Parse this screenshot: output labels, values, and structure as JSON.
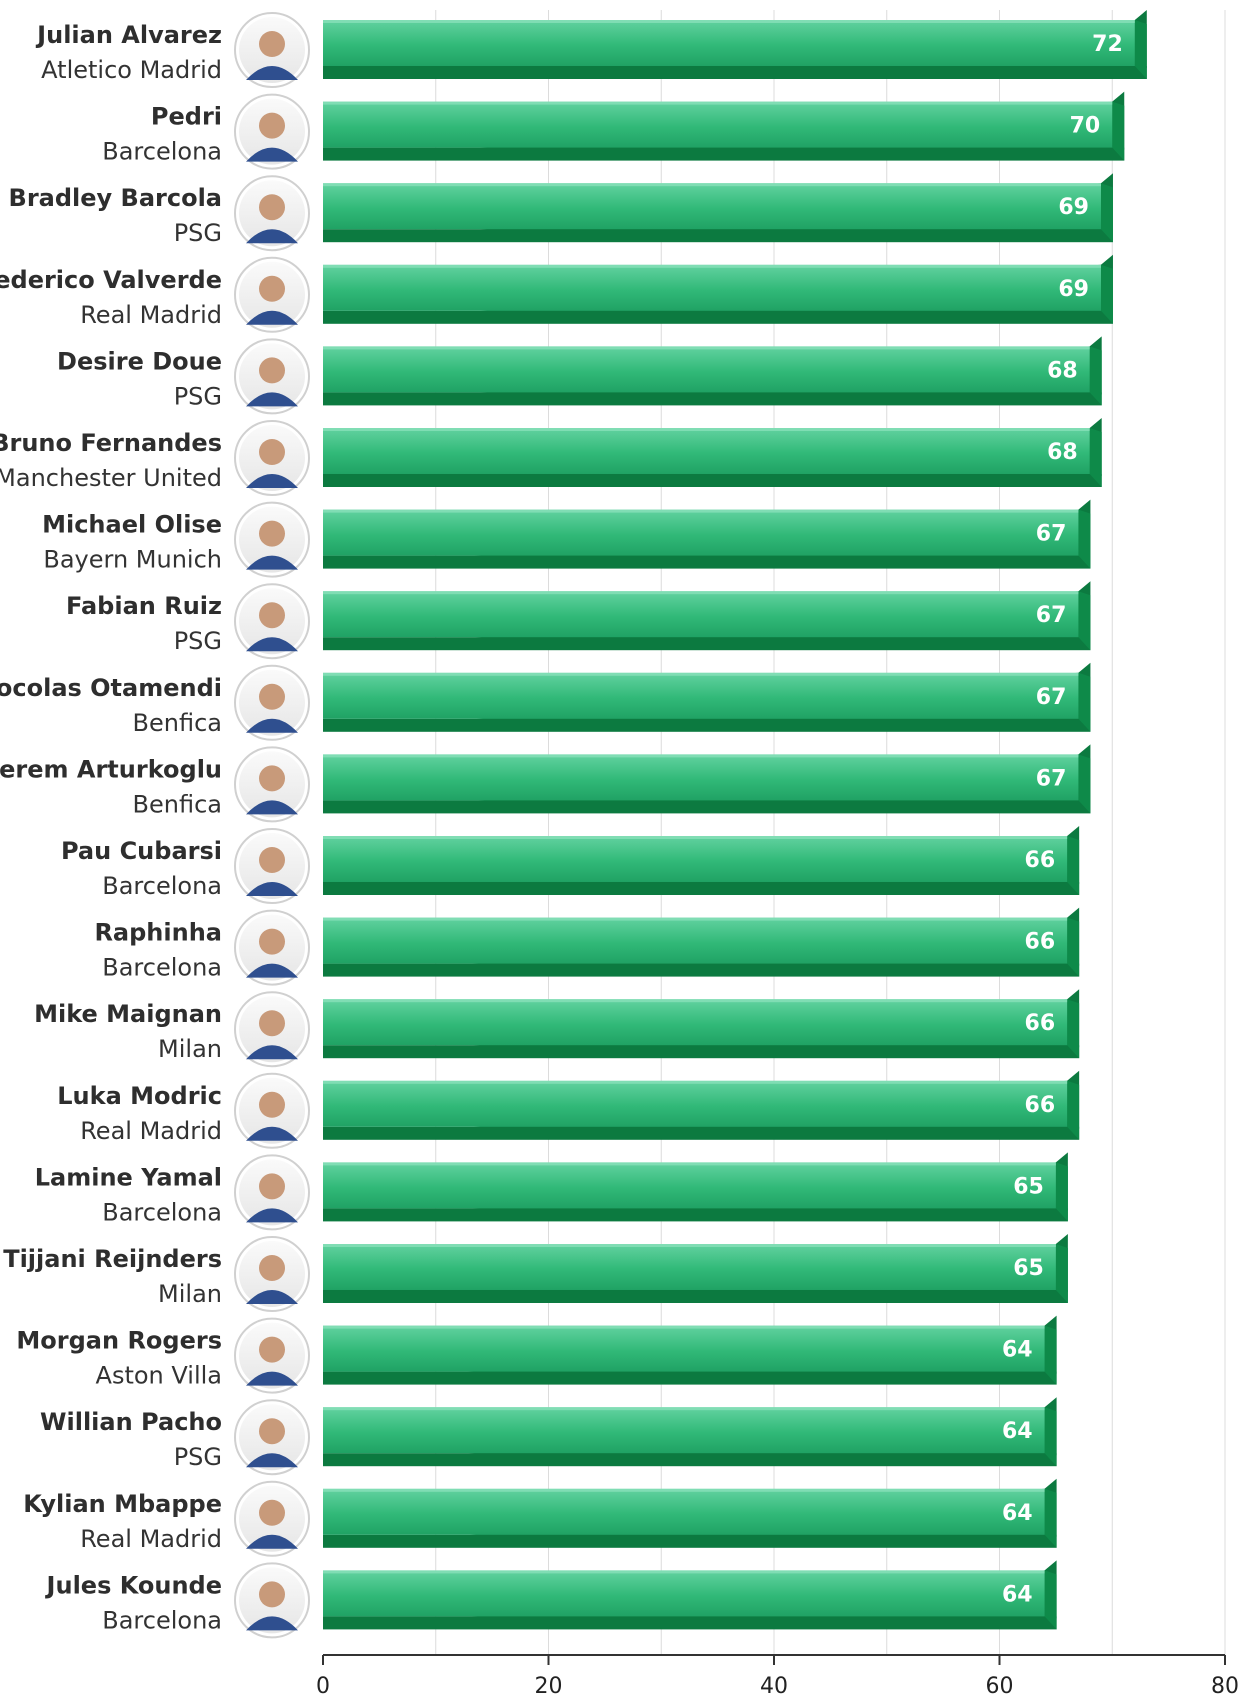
{
  "chart_data": {
    "type": "bar",
    "orientation": "horizontal",
    "categories": [
      {
        "name": "Julian Alvarez",
        "team": "Atletico Madrid"
      },
      {
        "name": "Pedri",
        "team": "Barcelona"
      },
      {
        "name": "Bradley Barcola",
        "team": "PSG"
      },
      {
        "name": "Federico Valverde",
        "team": "Real Madrid"
      },
      {
        "name": "Desire Doue",
        "team": "PSG"
      },
      {
        "name": "Bruno Fernandes",
        "team": "Manchester United"
      },
      {
        "name": "Michael Olise",
        "team": "Bayern Munich"
      },
      {
        "name": "Fabian Ruiz",
        "team": "PSG"
      },
      {
        "name": "Nocolas Otamendi",
        "team": "Benfica"
      },
      {
        "name": "Kerem Arturkoglu",
        "team": "Benfica"
      },
      {
        "name": "Pau Cubarsi",
        "team": "Barcelona"
      },
      {
        "name": "Raphinha",
        "team": "Barcelona"
      },
      {
        "name": "Mike Maignan",
        "team": "Milan"
      },
      {
        "name": "Luka Modric",
        "team": "Real Madrid"
      },
      {
        "name": "Lamine Yamal",
        "team": "Barcelona"
      },
      {
        "name": "Tijjani Reijnders",
        "team": "Milan"
      },
      {
        "name": "Morgan Rogers",
        "team": "Aston Villa"
      },
      {
        "name": "Willian Pacho",
        "team": "PSG"
      },
      {
        "name": "Kylian Mbappe",
        "team": "Real Madrid"
      },
      {
        "name": "Jules Kounde",
        "team": "Barcelona"
      }
    ],
    "values": [
      72,
      70,
      69,
      69,
      68,
      68,
      67,
      67,
      67,
      67,
      66,
      66,
      66,
      66,
      65,
      65,
      64,
      64,
      64,
      64
    ],
    "xlim": [
      0,
      80
    ],
    "xticks": [
      "0",
      "20",
      "40",
      "60",
      "80"
    ],
    "grid": true,
    "title": "",
    "xlabel": "",
    "ylabel": ""
  },
  "colors": {
    "bar_light": "#5fcf9d",
    "bar_mid": "#2fb876",
    "bar_dark": "#1fa062",
    "bar_shadow": "#0c7a40",
    "grid": "#dcdcdc",
    "axis": "#333333",
    "avatar_bg": "#f2f2f2"
  },
  "icons": {
    "avatar": "player-avatar-icon"
  }
}
